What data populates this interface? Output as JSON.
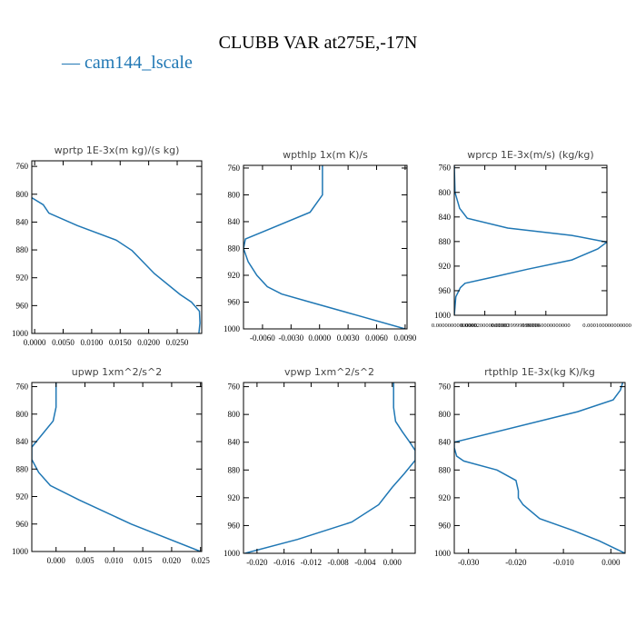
{
  "figure": {
    "title": "CLUBB VAR at275E,-17N",
    "legend_label": "cam144_lscale",
    "line_color": "#1f77b4"
  },
  "chart_data": [
    {
      "type": "line",
      "title": "wprtp  1E-3x(m kg)/(s kg)",
      "xlim": [
        -0.0005,
        0.0293
      ],
      "ylim": [
        1000,
        752
      ],
      "y_inverted": true,
      "x_ticks": [
        "0.0000",
        "0.0050",
        "0.0100",
        "0.0150",
        "0.0200",
        "0.0250"
      ],
      "x_tick_values": [
        0,
        0.005,
        0.01,
        0.015,
        0.02,
        0.025
      ],
      "y_ticks": [
        "760",
        "800",
        "840",
        "880",
        "920",
        "960",
        "1000"
      ],
      "y_tick_values": [
        760,
        800,
        840,
        880,
        920,
        960,
        1000
      ],
      "series": [
        {
          "x": [
            -0.0005,
            0.0015,
            0.0025,
            0.0075,
            0.0143,
            0.0171,
            0.021,
            0.0255,
            0.0275,
            0.0289,
            0.029,
            0.0288
          ],
          "y": [
            805,
            815,
            827,
            845,
            866,
            881,
            914,
            944,
            955,
            968,
            985,
            1000
          ]
        }
      ]
    },
    {
      "type": "line",
      "title": "wpthlp  1x(m K)/s",
      "xlim": [
        -0.008,
        0.0092
      ],
      "ylim": [
        1000,
        756
      ],
      "y_inverted": true,
      "x_ticks": [
        "-0.0060",
        "-0.0030",
        "0.0000",
        "0.0030",
        "0.0060",
        "0.0090"
      ],
      "x_tick_values": [
        -0.006,
        -0.003,
        0,
        0.003,
        0.006,
        0.009
      ],
      "y_ticks": [
        "760",
        "800",
        "840",
        "880",
        "920",
        "960",
        "1000"
      ],
      "y_tick_values": [
        760,
        800,
        840,
        880,
        920,
        960,
        1000
      ],
      "series": [
        {
          "x": [
            0.0003,
            0.0003,
            0.0003,
            -0.001,
            -0.0078,
            -0.008,
            -0.0075,
            -0.0066,
            -0.0055,
            -0.004,
            -0.001,
            0.004,
            0.009
          ],
          "y": [
            756,
            780,
            800,
            826,
            866,
            880,
            900,
            920,
            937,
            948,
            960,
            980,
            1000
          ]
        }
      ]
    },
    {
      "type": "line",
      "title": "wprcp  1E-3x(m/s) (kg/kg)",
      "xlim": [
        0.0,
        0.0001
      ],
      "ylim": [
        1000,
        756
      ],
      "y_inverted": true,
      "x_ticks": [
        "0.00000000000000",
        "0.000020000000000",
        "0.000039999999999",
        "0.000060000000000",
        "0.000100000000000"
      ],
      "x_tick_values": [
        0.0,
        2e-05,
        4e-05,
        6e-05,
        0.0001
      ],
      "y_ticks": [
        "760",
        "800",
        "840",
        "880",
        "920",
        "960",
        "1000"
      ],
      "y_tick_values": [
        760,
        800,
        840,
        880,
        920,
        960,
        1000
      ],
      "series": [
        {
          "x": [
            0.0,
            5e-07,
            3.5e-06,
            8.5e-06,
            3.5e-05,
            7.7e-05,
            0.0001,
            9.4e-05,
            7.7e-05,
            4.8e-05,
            2.5e-05,
            7e-06,
            4e-06,
            1e-06,
            0.0
          ],
          "y": [
            756,
            800,
            826,
            842,
            858,
            870,
            881,
            892,
            910,
            925,
            938,
            948,
            955,
            970,
            1000
          ]
        }
      ]
    },
    {
      "type": "line",
      "title": "upwp  1xm^2/s^2",
      "xlim": [
        -0.0042,
        0.0252
      ],
      "ylim": [
        1000,
        754
      ],
      "y_inverted": true,
      "x_ticks": [
        "0.000",
        "0.005",
        "0.010",
        "0.015",
        "0.020",
        "0.025"
      ],
      "x_tick_values": [
        0,
        0.005,
        0.01,
        0.015,
        0.02,
        0.025
      ],
      "y_ticks": [
        "760",
        "800",
        "840",
        "880",
        "920",
        "960",
        "1000"
      ],
      "y_tick_values": [
        760,
        800,
        840,
        880,
        920,
        960,
        1000
      ],
      "series": [
        {
          "x": [
            0.0,
            0.0,
            -0.0005,
            -0.0042,
            -0.0042,
            -0.003,
            -0.001,
            0.004,
            0.013,
            0.025
          ],
          "y": [
            754,
            790,
            810,
            848,
            866,
            885,
            904,
            925,
            960,
            1000
          ]
        }
      ]
    },
    {
      "type": "line",
      "title": "vpwp  1xm^2/s^2",
      "xlim": [
        -0.022,
        0.0034
      ],
      "ylim": [
        1000,
        754
      ],
      "y_inverted": true,
      "x_ticks": [
        "-0.020",
        "-0.016",
        "-0.012",
        "-0.008",
        "-0.004",
        "0.000"
      ],
      "x_tick_values": [
        -0.02,
        -0.016,
        -0.012,
        -0.008,
        -0.004,
        0.0
      ],
      "y_ticks": [
        "760",
        "800",
        "840",
        "880",
        "920",
        "960",
        "1000"
      ],
      "y_tick_values": [
        760,
        800,
        840,
        880,
        920,
        960,
        1000
      ],
      "series": [
        {
          "x": [
            0.0002,
            0.0002,
            0.0005,
            0.0015,
            0.0026,
            0.0034,
            0.0034,
            0.0018,
            0.0,
            -0.002,
            -0.006,
            -0.014,
            -0.0218
          ],
          "y": [
            754,
            790,
            810,
            825,
            840,
            852,
            866,
            885,
            905,
            930,
            955,
            980,
            1000
          ]
        }
      ]
    },
    {
      "type": "line",
      "title": "rtpthlp  1E-3x(kg K)/kg",
      "xlim": [
        -0.033,
        0.003
      ],
      "ylim": [
        1000,
        754
      ],
      "y_inverted": true,
      "x_ticks": [
        "-0.030",
        "-0.020",
        "-0.010",
        "0.000"
      ],
      "x_tick_values": [
        -0.03,
        -0.02,
        -0.01,
        0.0
      ],
      "y_ticks": [
        "760",
        "800",
        "840",
        "880",
        "920",
        "960",
        "1000"
      ],
      "y_tick_values": [
        760,
        800,
        840,
        880,
        920,
        960,
        1000
      ],
      "series": [
        {
          "x": [
            0.0025,
            0.002,
            0.0005,
            -0.007,
            -0.033,
            -0.033,
            -0.0325,
            -0.031,
            -0.024,
            -0.02,
            -0.0195,
            -0.0195,
            -0.0185,
            -0.015,
            -0.008,
            -0.0025,
            0.003
          ],
          "y": [
            754,
            765,
            779,
            796,
            840,
            848,
            860,
            867,
            880,
            895,
            910,
            920,
            930,
            950,
            967,
            982,
            1000
          ]
        }
      ]
    }
  ]
}
